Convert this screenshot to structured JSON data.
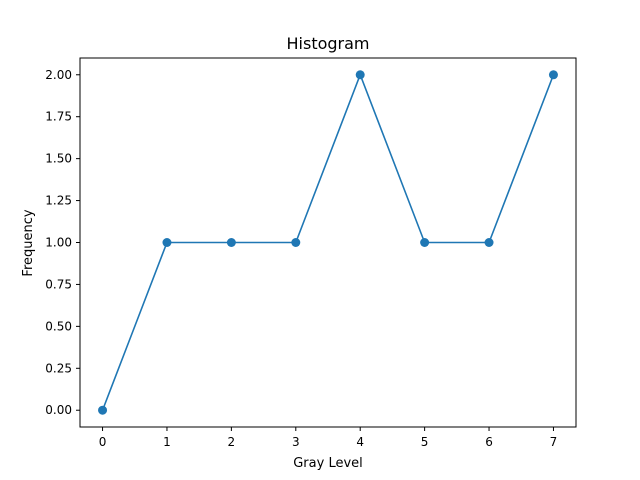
{
  "chart_data": {
    "type": "line",
    "title": "Histogram",
    "xlabel": "Gray Level",
    "ylabel": "Frequency",
    "x": [
      0,
      1,
      2,
      3,
      4,
      5,
      6,
      7
    ],
    "series": [
      {
        "values": [
          0,
          1,
          1,
          1,
          2,
          1,
          1,
          2
        ],
        "color": "#1f77b4",
        "marker": "circle"
      }
    ],
    "xlim": [
      -0.35,
      7.35
    ],
    "ylim": [
      -0.1,
      2.1
    ],
    "xticks": [
      "0",
      "1",
      "2",
      "3",
      "4",
      "5",
      "6",
      "7"
    ],
    "yticks": [
      "0.00",
      "0.25",
      "0.50",
      "0.75",
      "1.00",
      "1.25",
      "1.50",
      "1.75",
      "2.00"
    ],
    "grid": false,
    "legend": false
  }
}
